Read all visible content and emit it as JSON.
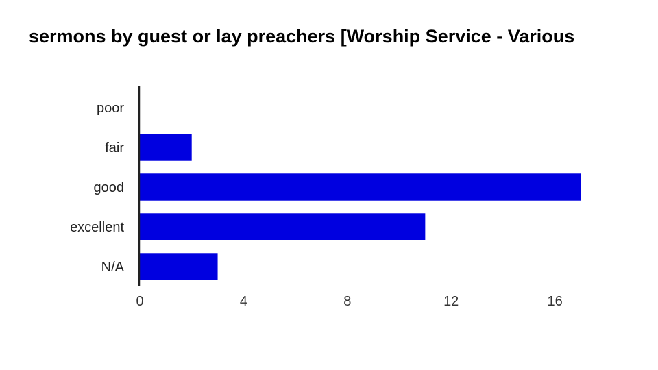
{
  "chart_data": {
    "type": "bar",
    "orientation": "horizontal",
    "title": "sermons by guest or lay preachers [Worship Service - Various",
    "categories": [
      "poor",
      "fair",
      "good",
      "excellent",
      "N/A"
    ],
    "values": [
      0,
      2,
      17,
      11,
      3
    ],
    "xlim": [
      0,
      18
    ],
    "xticks": [
      0,
      4,
      8,
      12,
      16
    ],
    "xlabel": "",
    "ylabel": "",
    "grid": false,
    "legend": "none",
    "bar_color": "#0000e0"
  }
}
